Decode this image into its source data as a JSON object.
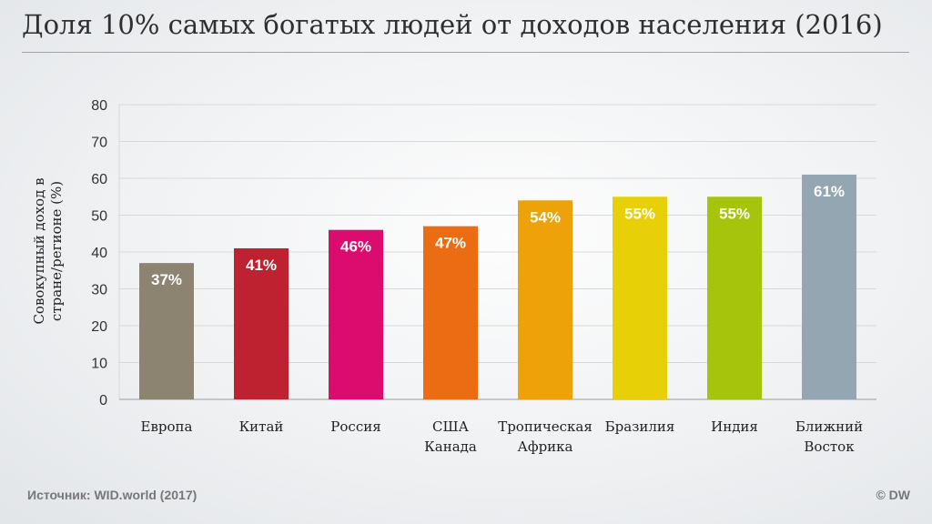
{
  "header": {
    "title": "Доля 10% самых богатых людей от доходов населения (2016)"
  },
  "footer": {
    "source": "Источник: WID.world (2017)",
    "credit": "© DW"
  },
  "chart_data": {
    "type": "bar",
    "title": "Доля 10% самых богатых людей от доходов населения (2016)",
    "xlabel": "",
    "ylabel_lines": [
      "Совокупный доход в",
      "стране/регионе (%)"
    ],
    "ylim": [
      0,
      80
    ],
    "yticks": [
      0,
      10,
      20,
      30,
      40,
      50,
      60,
      70,
      80
    ],
    "grid": true,
    "categories": [
      [
        "Европа"
      ],
      [
        "Китай"
      ],
      [
        "Россия"
      ],
      [
        "США",
        "Канада"
      ],
      [
        "Тропическая",
        "Африка"
      ],
      [
        "Бразилия"
      ],
      [
        "Индия"
      ],
      [
        "Ближний",
        "Восток"
      ]
    ],
    "values": [
      37,
      41,
      46,
      47,
      54,
      55,
      55,
      61
    ],
    "data_labels": [
      "37%",
      "41%",
      "46%",
      "47%",
      "54%",
      "55%",
      "55%",
      "61%"
    ],
    "colors": [
      "#8c8370",
      "#be2230",
      "#dc0c6e",
      "#ec6c14",
      "#eca208",
      "#e8d008",
      "#a6c40c",
      "#94a6b2"
    ]
  }
}
